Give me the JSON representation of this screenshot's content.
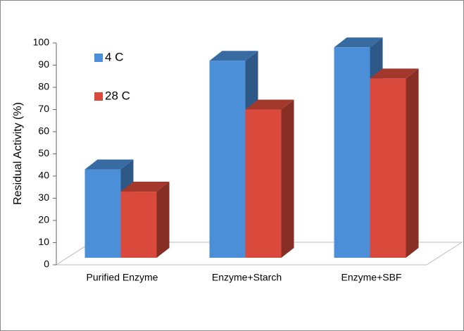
{
  "chart_data": {
    "type": "bar3d",
    "y_label": "Residual Activity (%)",
    "categories": [
      "Purified Enzyme",
      "Enzyme+Starch",
      "Enzyme+SBF"
    ],
    "series": [
      {
        "name": "4 C",
        "color": "#4a8fd8",
        "values": [
          43,
          92,
          98
        ]
      },
      {
        "name": "28 C",
        "color": "#d94a3c",
        "values": [
          33,
          70,
          84
        ]
      }
    ],
    "ylim": [
      0,
      100
    ],
    "yticks": [
      0,
      10,
      20,
      30,
      40,
      50,
      60,
      70,
      80,
      90,
      100
    ],
    "grid": false,
    "legend": "upper left"
  }
}
